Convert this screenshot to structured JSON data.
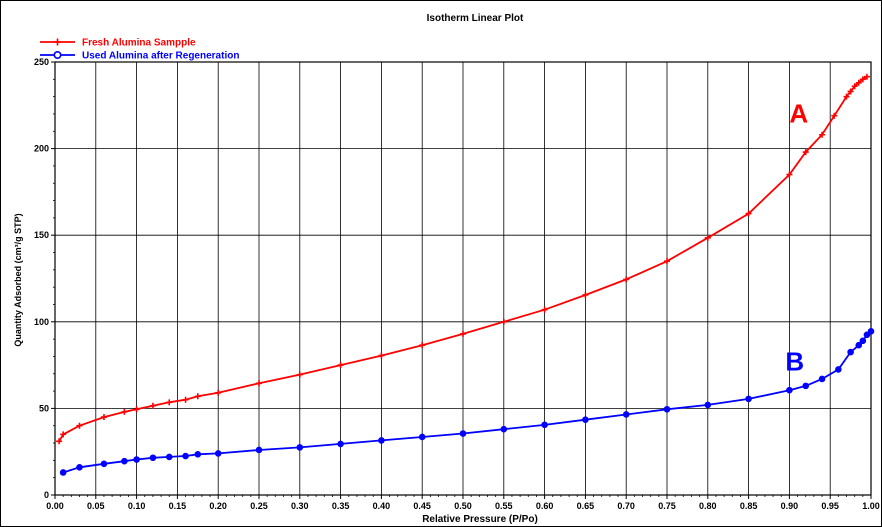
{
  "chart_data": {
    "type": "line",
    "title": "Isotherm Linear Plot",
    "xlabel": "Relative Pressure (P/Po)",
    "ylabel": "Quantity Adsorbed (cm³/g STP)",
    "xlim": [
      0.0,
      1.0
    ],
    "ylim": [
      0,
      250
    ],
    "xticks": [
      "0.00",
      "0.05",
      "0.10",
      "0.15",
      "0.20",
      "0.25",
      "0.30",
      "0.35",
      "0.40",
      "0.45",
      "0.50",
      "0.55",
      "0.60",
      "0.65",
      "0.70",
      "0.75",
      "0.80",
      "0.85",
      "0.90",
      "0.95",
      "1.00"
    ],
    "yticks": [
      "0",
      "50",
      "100",
      "150",
      "200",
      "250"
    ],
    "grid": true,
    "legend_position": "top-left",
    "series": [
      {
        "name": "Fresh Alumina Sampple",
        "color": "#ff0000",
        "marker": "plus",
        "annotation": "A",
        "x": [
          0.005,
          0.01,
          0.03,
          0.06,
          0.085,
          0.1,
          0.12,
          0.14,
          0.16,
          0.175,
          0.2,
          0.25,
          0.3,
          0.35,
          0.4,
          0.45,
          0.5,
          0.55,
          0.6,
          0.65,
          0.7,
          0.75,
          0.8,
          0.85,
          0.9,
          0.92,
          0.94,
          0.955,
          0.97,
          0.975,
          0.98,
          0.985,
          0.99,
          0.995
        ],
        "y": [
          31,
          35,
          40,
          45,
          48,
          49.5,
          51.5,
          53.5,
          55,
          57,
          59,
          64.5,
          69.5,
          75,
          80.5,
          86.5,
          93,
          100,
          107,
          115.5,
          124.5,
          135,
          148.5,
          162.5,
          185,
          198,
          208,
          219,
          230,
          233,
          236,
          238,
          240,
          241.5
        ]
      },
      {
        "name": "Used Alumina after Regeneration",
        "color": "#0000ff",
        "marker": "circle",
        "annotation": "B",
        "x": [
          0.01,
          0.03,
          0.06,
          0.085,
          0.1,
          0.12,
          0.14,
          0.16,
          0.175,
          0.2,
          0.25,
          0.3,
          0.35,
          0.4,
          0.45,
          0.5,
          0.55,
          0.6,
          0.65,
          0.7,
          0.75,
          0.8,
          0.85,
          0.9,
          0.92,
          0.94,
          0.96,
          0.975,
          0.985,
          0.99,
          0.995,
          1.0
        ],
        "y": [
          13,
          16,
          18,
          19.5,
          20.5,
          21.5,
          22,
          22.5,
          23.5,
          24,
          26,
          27.5,
          29.5,
          31.5,
          33.5,
          35.5,
          38,
          40.5,
          43.5,
          46.5,
          49.5,
          52,
          55.5,
          60.5,
          63,
          67,
          72.5,
          82.5,
          86.5,
          89,
          92.5,
          94.5
        ]
      }
    ]
  }
}
